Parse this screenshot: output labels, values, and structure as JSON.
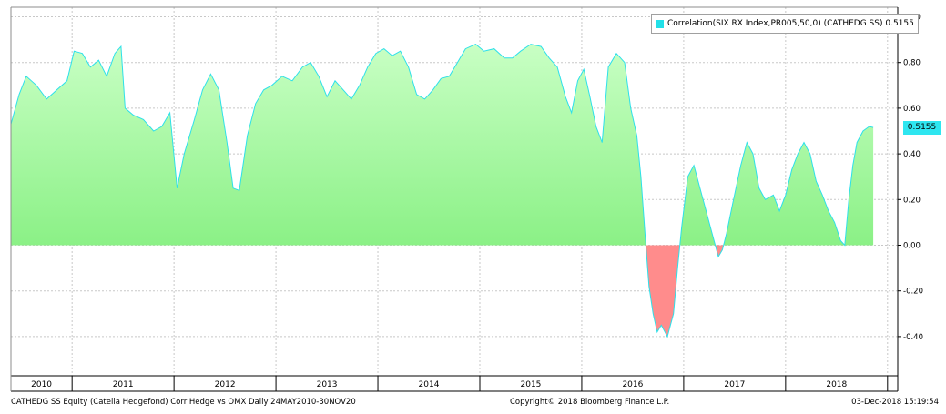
{
  "legend": {
    "label": "Correlation(SIX RX Index,PR005,50,0) (CATHEDG SS)",
    "value": "0.5155"
  },
  "last_value_tag": "0.5155",
  "footer": {
    "left": "CATHEDG SS Equity (Catella Hedgefond) Corr Hedge vs OMX  Daily 24MAY2010-30NOV20",
    "center": "Copyright© 2018 Bloomberg Finance L.P.",
    "right": "03-Dec-2018 15:19:54"
  },
  "colors": {
    "positive_fill_top": "#c2ffbe",
    "positive_fill_bottom": "#6fea6a",
    "negative_fill": "#ff8c8c",
    "line": "#2de0ea",
    "grid": "#c8c8c8"
  },
  "chart_data": {
    "type": "area",
    "title": "",
    "xlabel": "",
    "ylabel": "",
    "ylim": [
      -0.55,
      1.0
    ],
    "y_ticks": [
      "1.00",
      "0.80",
      "0.60",
      "0.40",
      "0.20",
      "0.00",
      "-0.20",
      "-0.40"
    ],
    "x_ticks": [
      "2010",
      "2011",
      "2012",
      "2013",
      "2014",
      "2015",
      "2016",
      "2017",
      "2018"
    ],
    "grid": true,
    "legend_position": "top-right",
    "series": [
      {
        "name": "Correlation(SIX RX Index,PR005,50,0) (CATHEDG SS)",
        "points": [
          [
            2010.4,
            0.53
          ],
          [
            2010.48,
            0.66
          ],
          [
            2010.55,
            0.74
          ],
          [
            2010.65,
            0.7
          ],
          [
            2010.75,
            0.64
          ],
          [
            2010.85,
            0.68
          ],
          [
            2010.95,
            0.72
          ],
          [
            2011.02,
            0.85
          ],
          [
            2011.1,
            0.84
          ],
          [
            2011.18,
            0.78
          ],
          [
            2011.26,
            0.81
          ],
          [
            2011.34,
            0.74
          ],
          [
            2011.42,
            0.84
          ],
          [
            2011.48,
            0.87
          ],
          [
            2011.52,
            0.6
          ],
          [
            2011.6,
            0.57
          ],
          [
            2011.7,
            0.55
          ],
          [
            2011.8,
            0.5
          ],
          [
            2011.88,
            0.52
          ],
          [
            2011.96,
            0.58
          ],
          [
            2012.03,
            0.25
          ],
          [
            2012.1,
            0.4
          ],
          [
            2012.2,
            0.55
          ],
          [
            2012.28,
            0.68
          ],
          [
            2012.36,
            0.75
          ],
          [
            2012.44,
            0.68
          ],
          [
            2012.52,
            0.45
          ],
          [
            2012.58,
            0.25
          ],
          [
            2012.64,
            0.24
          ],
          [
            2012.72,
            0.48
          ],
          [
            2012.8,
            0.62
          ],
          [
            2012.88,
            0.68
          ],
          [
            2012.96,
            0.7
          ],
          [
            2013.06,
            0.74
          ],
          [
            2013.16,
            0.72
          ],
          [
            2013.26,
            0.78
          ],
          [
            2013.34,
            0.8
          ],
          [
            2013.42,
            0.74
          ],
          [
            2013.5,
            0.65
          ],
          [
            2013.58,
            0.72
          ],
          [
            2013.66,
            0.68
          ],
          [
            2013.74,
            0.64
          ],
          [
            2013.82,
            0.7
          ],
          [
            2013.9,
            0.78
          ],
          [
            2013.98,
            0.84
          ],
          [
            2014.06,
            0.86
          ],
          [
            2014.14,
            0.83
          ],
          [
            2014.22,
            0.85
          ],
          [
            2014.3,
            0.78
          ],
          [
            2014.38,
            0.66
          ],
          [
            2014.46,
            0.64
          ],
          [
            2014.54,
            0.68
          ],
          [
            2014.62,
            0.73
          ],
          [
            2014.7,
            0.74
          ],
          [
            2014.78,
            0.8
          ],
          [
            2014.86,
            0.86
          ],
          [
            2014.96,
            0.88
          ],
          [
            2015.04,
            0.85
          ],
          [
            2015.14,
            0.86
          ],
          [
            2015.24,
            0.82
          ],
          [
            2015.32,
            0.82
          ],
          [
            2015.4,
            0.85
          ],
          [
            2015.5,
            0.88
          ],
          [
            2015.6,
            0.87
          ],
          [
            2015.68,
            0.82
          ],
          [
            2015.76,
            0.78
          ],
          [
            2015.84,
            0.65
          ],
          [
            2015.9,
            0.58
          ],
          [
            2015.96,
            0.72
          ],
          [
            2016.02,
            0.77
          ],
          [
            2016.08,
            0.65
          ],
          [
            2016.14,
            0.52
          ],
          [
            2016.2,
            0.45
          ],
          [
            2016.26,
            0.78
          ],
          [
            2016.34,
            0.84
          ],
          [
            2016.42,
            0.8
          ],
          [
            2016.48,
            0.6
          ],
          [
            2016.54,
            0.48
          ],
          [
            2016.58,
            0.3
          ],
          [
            2016.62,
            0.05
          ],
          [
            2016.66,
            -0.18
          ],
          [
            2016.7,
            -0.3
          ],
          [
            2016.74,
            -0.38
          ],
          [
            2016.78,
            -0.35
          ],
          [
            2016.84,
            -0.4
          ],
          [
            2016.9,
            -0.3
          ],
          [
            2016.94,
            -0.1
          ],
          [
            2016.98,
            0.08
          ],
          [
            2017.04,
            0.3
          ],
          [
            2017.1,
            0.35
          ],
          [
            2017.16,
            0.25
          ],
          [
            2017.22,
            0.15
          ],
          [
            2017.28,
            0.05
          ],
          [
            2017.34,
            -0.05
          ],
          [
            2017.38,
            -0.02
          ],
          [
            2017.42,
            0.05
          ],
          [
            2017.48,
            0.18
          ],
          [
            2017.56,
            0.35
          ],
          [
            2017.62,
            0.45
          ],
          [
            2017.68,
            0.4
          ],
          [
            2017.74,
            0.25
          ],
          [
            2017.8,
            0.2
          ],
          [
            2017.88,
            0.22
          ],
          [
            2017.94,
            0.15
          ],
          [
            2018.0,
            0.22
          ],
          [
            2018.06,
            0.33
          ],
          [
            2018.12,
            0.4
          ],
          [
            2018.18,
            0.45
          ],
          [
            2018.24,
            0.4
          ],
          [
            2018.3,
            0.28
          ],
          [
            2018.36,
            0.22
          ],
          [
            2018.42,
            0.15
          ],
          [
            2018.48,
            0.1
          ],
          [
            2018.54,
            0.02
          ],
          [
            2018.58,
            0.0
          ],
          [
            2018.62,
            0.2
          ],
          [
            2018.66,
            0.35
          ],
          [
            2018.7,
            0.45
          ],
          [
            2018.76,
            0.5
          ],
          [
            2018.82,
            0.52
          ],
          [
            2018.86,
            0.5155
          ]
        ]
      }
    ]
  }
}
